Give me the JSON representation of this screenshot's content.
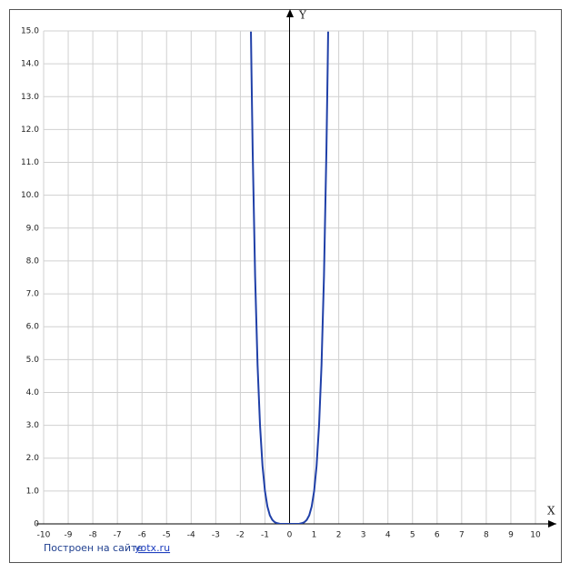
{
  "chart_data": {
    "type": "line",
    "x_label": "X",
    "y_label": "Y",
    "x": [
      -1.57,
      -1.55,
      -1.5,
      -1.4,
      -1.3,
      -1.2,
      -1.1,
      -1.0,
      -0.9,
      -0.8,
      -0.7,
      -0.6,
      -0.5,
      -0.4,
      -0.2,
      0,
      0.2,
      0.4,
      0.5,
      0.6,
      0.7,
      0.8,
      0.9,
      1.0,
      1.1,
      1.2,
      1.3,
      1.4,
      1.5,
      1.55,
      1.57
    ],
    "values": [
      14.98,
      13.87,
      11.39,
      7.53,
      4.83,
      2.99,
      1.77,
      1.0,
      0.53,
      0.26,
      0.12,
      0.05,
      0.02,
      0.004,
      0,
      0,
      0,
      0.004,
      0.02,
      0.05,
      0.12,
      0.26,
      0.53,
      1.0,
      1.77,
      2.99,
      4.83,
      7.53,
      11.39,
      13.87,
      14.98
    ],
    "color": "#2040a8",
    "xlim": [
      -10,
      10
    ],
    "ylim": [
      0,
      15
    ],
    "xticks": [
      -10,
      -9,
      -8,
      -7,
      -6,
      -5,
      -4,
      -3,
      -2,
      -1,
      0,
      1,
      2,
      3,
      4,
      5,
      6,
      7,
      8,
      9,
      10
    ],
    "yticks": [
      0,
      {
        "value": 1,
        "label": "1.0"
      },
      {
        "value": 2,
        "label": "2.0"
      },
      {
        "value": 3,
        "label": "3.0"
      },
      {
        "value": 4,
        "label": "4.0"
      },
      {
        "value": 5,
        "label": "5.0"
      },
      {
        "value": 6,
        "label": "6.0"
      },
      {
        "value": 7,
        "label": "7.0"
      },
      {
        "value": 8,
        "label": "8.0"
      },
      {
        "value": 9,
        "label": "9.0"
      },
      {
        "value": 10,
        "label": "10.0"
      },
      {
        "value": 11,
        "label": "11.0"
      },
      {
        "value": 12,
        "label": "12.0"
      },
      {
        "value": 13,
        "label": "13.0"
      },
      {
        "value": 14,
        "label": "14.0"
      },
      {
        "value": 15,
        "label": "15.0"
      }
    ],
    "grid": true
  },
  "footer": {
    "text": "Построен на сайте",
    "link": "yotx.ru"
  }
}
